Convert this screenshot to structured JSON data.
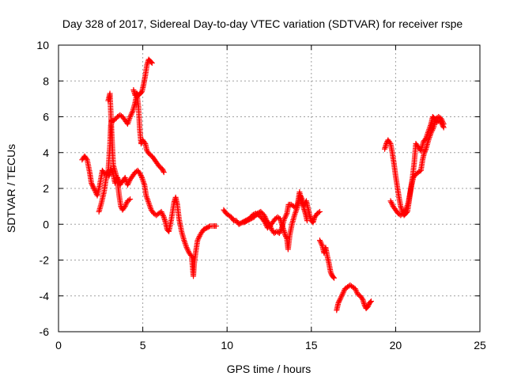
{
  "chart_data": {
    "type": "scatter",
    "title": "Day 328 of 2017, Sidereal Day-to-day VTEC variation (SDTVAR) for receiver rspe",
    "xlabel": "GPS time / hours",
    "ylabel": "SDTVAR / TECUs",
    "xlim": [
      0,
      25
    ],
    "ylim": [
      -6,
      10
    ],
    "x_ticks": [
      0,
      5,
      10,
      15,
      20,
      25
    ],
    "y_ticks": [
      -6,
      -4,
      -2,
      0,
      2,
      4,
      6,
      8,
      10
    ],
    "grid": true,
    "marker": "+",
    "marker_color": "#ff0000",
    "series": [
      {
        "name": "",
        "segments": [
          [
            [
              1.4,
              3.6
            ],
            [
              1.55,
              3.8
            ],
            [
              1.7,
              3.6
            ],
            [
              1.85,
              2.9
            ],
            [
              1.95,
              2.3
            ],
            [
              2.05,
              2.1
            ],
            [
              2.15,
              1.9
            ],
            [
              2.3,
              1.6
            ],
            [
              2.45,
              2.2
            ],
            [
              2.6,
              3.0
            ],
            [
              2.75,
              2.8
            ],
            [
              2.9,
              2.9
            ],
            [
              3.0,
              2.7
            ],
            [
              3.1,
              3.1
            ],
            [
              3.25,
              2.8
            ],
            [
              3.35,
              2.3
            ],
            [
              3.5,
              2.6
            ],
            [
              3.65,
              2.2
            ],
            [
              3.8,
              2.4
            ],
            [
              3.95,
              2.6
            ],
            [
              4.1,
              2.2
            ],
            [
              4.25,
              2.5
            ],
            [
              4.4,
              2.7
            ],
            [
              4.55,
              2.9
            ],
            [
              4.7,
              3.0
            ],
            [
              4.85,
              2.8
            ],
            [
              4.95,
              2.6
            ],
            [
              5.1,
              2.2
            ],
            [
              5.2,
              1.6
            ],
            [
              5.35,
              1.2
            ],
            [
              5.5,
              0.8
            ],
            [
              5.65,
              0.6
            ],
            [
              5.8,
              0.5
            ],
            [
              5.95,
              0.6
            ],
            [
              6.1,
              0.7
            ],
            [
              6.25,
              0.4
            ],
            [
              6.35,
              0.1
            ],
            [
              6.45,
              -0.3
            ],
            [
              6.55,
              -0.4
            ],
            [
              6.7,
              0.3
            ],
            [
              6.85,
              1.2
            ],
            [
              6.95,
              1.5
            ],
            [
              7.05,
              1.1
            ],
            [
              7.15,
              0.3
            ],
            [
              7.3,
              -0.4
            ],
            [
              7.45,
              -0.9
            ],
            [
              7.6,
              -1.3
            ],
            [
              7.75,
              -1.6
            ],
            [
              7.9,
              -1.8
            ],
            [
              8.0,
              -2.9
            ],
            [
              8.05,
              -2.2
            ],
            [
              8.15,
              -1.5
            ],
            [
              8.25,
              -0.9
            ],
            [
              8.4,
              -0.6
            ],
            [
              8.6,
              -0.3
            ],
            [
              8.8,
              -0.2
            ],
            [
              9.0,
              -0.1
            ],
            [
              9.2,
              -0.1
            ],
            [
              9.35,
              -0.1
            ]
          ],
          [
            [
              2.4,
              0.7
            ],
            [
              2.55,
              1.2
            ],
            [
              2.7,
              1.8
            ],
            [
              2.85,
              2.7
            ],
            [
              2.95,
              3.0
            ],
            [
              3.05,
              4.4
            ],
            [
              3.1,
              5.5
            ],
            [
              3.15,
              5.8
            ],
            [
              3.3,
              5.8
            ],
            [
              3.5,
              6.0
            ],
            [
              3.65,
              6.1
            ],
            [
              3.8,
              6.0
            ],
            [
              3.95,
              5.8
            ],
            [
              4.1,
              5.6
            ],
            [
              4.25,
              6.0
            ],
            [
              4.4,
              6.3
            ],
            [
              4.55,
              6.8
            ],
            [
              4.65,
              7.3
            ],
            [
              4.75,
              6.5
            ],
            [
              4.82,
              5.3
            ],
            [
              4.9,
              4.5
            ],
            [
              5.0,
              4.7
            ],
            [
              5.15,
              4.5
            ],
            [
              5.25,
              4.1
            ],
            [
              5.4,
              3.9
            ],
            [
              5.55,
              3.8
            ],
            [
              5.7,
              3.6
            ],
            [
              5.85,
              3.4
            ],
            [
              6.0,
              3.2
            ],
            [
              6.15,
              3.1
            ],
            [
              6.25,
              2.9
            ]
          ],
          [
            [
              2.95,
              6.9
            ],
            [
              3.05,
              7.3
            ],
            [
              3.1,
              6.3
            ],
            [
              3.15,
              5.2
            ],
            [
              3.2,
              4.2
            ],
            [
              3.25,
              3.3
            ],
            [
              3.4,
              2.8
            ],
            [
              3.5,
              2.4
            ],
            [
              3.6,
              1.6
            ],
            [
              3.7,
              1.0
            ],
            [
              3.8,
              0.8
            ],
            [
              3.95,
              1.0
            ],
            [
              4.1,
              1.3
            ],
            [
              4.25,
              1.4
            ]
          ],
          [
            [
              4.45,
              7.5
            ],
            [
              4.55,
              7.2
            ],
            [
              4.65,
              7.3
            ],
            [
              4.75,
              7.2
            ],
            [
              4.85,
              7.3
            ],
            [
              4.95,
              7.4
            ],
            [
              5.05,
              7.8
            ],
            [
              5.15,
              8.3
            ],
            [
              5.25,
              8.9
            ],
            [
              5.35,
              9.2
            ],
            [
              5.45,
              9.1
            ],
            [
              5.55,
              9.0
            ]
          ],
          [
            [
              9.8,
              0.8
            ],
            [
              9.95,
              0.6
            ],
            [
              10.1,
              0.5
            ],
            [
              10.25,
              0.4
            ],
            [
              10.4,
              0.2
            ],
            [
              10.55,
              0.2
            ],
            [
              10.7,
              0.0
            ],
            [
              10.9,
              0.1
            ],
            [
              11.1,
              0.2
            ],
            [
              11.3,
              0.3
            ],
            [
              11.5,
              0.5
            ],
            [
              11.7,
              0.6
            ],
            [
              11.9,
              0.5
            ],
            [
              12.1,
              0.3
            ],
            [
              12.25,
              0.1
            ],
            [
              12.4,
              -0.2
            ],
            [
              12.55,
              -0.1
            ],
            [
              12.7,
              0.1
            ],
            [
              12.85,
              0.3
            ],
            [
              13.0,
              0.4
            ],
            [
              13.15,
              0.3
            ],
            [
              13.25,
              0.0
            ],
            [
              13.35,
              -0.3
            ],
            [
              13.45,
              -0.6
            ],
            [
              13.55,
              -0.8
            ],
            [
              13.62,
              -1.4
            ],
            [
              13.72,
              -0.6
            ],
            [
              13.85,
              0.0
            ],
            [
              14.0,
              0.5
            ],
            [
              14.15,
              0.9
            ],
            [
              14.25,
              1.3
            ],
            [
              14.35,
              1.6
            ],
            [
              14.45,
              1.4
            ],
            [
              14.55,
              0.9
            ],
            [
              14.65,
              0.6
            ],
            [
              14.75,
              0.2
            ]
          ],
          [
            [
              11.0,
              0.1
            ],
            [
              11.2,
              0.2
            ],
            [
              11.4,
              0.3
            ],
            [
              11.6,
              0.4
            ],
            [
              11.8,
              0.6
            ],
            [
              12.0,
              0.7
            ],
            [
              12.2,
              0.5
            ],
            [
              12.35,
              0.2
            ],
            [
              12.5,
              0.0
            ],
            [
              12.65,
              -0.3
            ],
            [
              12.8,
              -0.5
            ],
            [
              12.95,
              -0.4
            ],
            [
              13.1,
              -0.5
            ],
            [
              13.25,
              -0.2
            ],
            [
              13.4,
              0.3
            ],
            [
              13.55,
              0.6
            ],
            [
              13.65,
              1.1
            ],
            [
              13.8,
              1.1
            ],
            [
              13.95,
              1.0
            ],
            [
              14.1,
              0.9
            ],
            [
              14.2,
              1.2
            ],
            [
              14.3,
              1.8
            ],
            [
              14.42,
              1.2
            ],
            [
              14.55,
              1.0
            ],
            [
              14.7,
              1.3
            ],
            [
              14.8,
              0.9
            ],
            [
              14.9,
              0.5
            ],
            [
              15.0,
              0.2
            ],
            [
              15.1,
              0.1
            ],
            [
              15.2,
              0.4
            ],
            [
              15.35,
              0.6
            ],
            [
              15.5,
              0.7
            ]
          ],
          [
            [
              15.5,
              -0.9
            ],
            [
              15.65,
              -1.2
            ],
            [
              15.75,
              -1.6
            ],
            [
              15.85,
              -1.3
            ],
            [
              15.95,
              -1.8
            ],
            [
              16.05,
              -2.2
            ],
            [
              16.15,
              -2.7
            ],
            [
              16.25,
              -2.9
            ],
            [
              16.35,
              -3.0
            ]
          ],
          [
            [
              16.5,
              -4.8
            ],
            [
              16.6,
              -4.4
            ],
            [
              16.7,
              -4.2
            ],
            [
              16.85,
              -3.9
            ],
            [
              17.0,
              -3.6
            ],
            [
              17.15,
              -3.5
            ],
            [
              17.3,
              -3.4
            ],
            [
              17.45,
              -3.5
            ],
            [
              17.6,
              -3.6
            ],
            [
              17.75,
              -3.9
            ],
            [
              17.9,
              -4.0
            ],
            [
              18.05,
              -4.2
            ],
            [
              18.15,
              -4.5
            ],
            [
              18.25,
              -4.7
            ],
            [
              18.35,
              -4.6
            ],
            [
              18.45,
              -4.4
            ],
            [
              18.55,
              -4.3
            ]
          ],
          [
            [
              19.35,
              4.2
            ],
            [
              19.45,
              4.5
            ],
            [
              19.55,
              4.7
            ],
            [
              19.7,
              4.5
            ],
            [
              19.8,
              4.0
            ],
            [
              19.9,
              3.4
            ],
            [
              20.0,
              2.7
            ],
            [
              20.1,
              2.1
            ],
            [
              20.2,
              1.5
            ],
            [
              20.3,
              1.0
            ],
            [
              20.4,
              0.7
            ],
            [
              20.5,
              0.5
            ],
            [
              20.6,
              0.6
            ],
            [
              20.7,
              0.7
            ],
            [
              20.8,
              1.3
            ],
            [
              20.9,
              2.0
            ],
            [
              21.0,
              2.6
            ],
            [
              21.1,
              3.4
            ],
            [
              21.2,
              4.5
            ],
            [
              21.35,
              4.3
            ],
            [
              21.5,
              4.1
            ],
            [
              21.65,
              4.6
            ],
            [
              21.8,
              4.8
            ],
            [
              21.95,
              5.2
            ],
            [
              22.1,
              5.6
            ],
            [
              22.2,
              6.0
            ],
            [
              22.3,
              5.9
            ],
            [
              22.45,
              5.7
            ],
            [
              22.6,
              5.8
            ],
            [
              22.75,
              5.6
            ],
            [
              22.85,
              5.4
            ]
          ],
          [
            [
              19.7,
              1.3
            ],
            [
              19.85,
              1.0
            ],
            [
              20.0,
              0.8
            ],
            [
              20.15,
              0.6
            ],
            [
              20.3,
              0.5
            ],
            [
              20.45,
              0.6
            ],
            [
              20.6,
              0.8
            ],
            [
              20.75,
              1.2
            ],
            [
              20.85,
              1.7
            ],
            [
              20.95,
              2.2
            ],
            [
              21.05,
              2.6
            ],
            [
              21.2,
              2.8
            ],
            [
              21.35,
              2.9
            ],
            [
              21.5,
              3.0
            ],
            [
              21.6,
              3.6
            ],
            [
              21.7,
              4.0
            ],
            [
              21.8,
              4.2
            ],
            [
              21.95,
              4.7
            ],
            [
              22.1,
              5.1
            ],
            [
              22.25,
              5.4
            ],
            [
              22.4,
              5.9
            ],
            [
              22.55,
              6.0
            ],
            [
              22.7,
              5.9
            ],
            [
              22.85,
              5.6
            ]
          ]
        ]
      }
    ]
  }
}
